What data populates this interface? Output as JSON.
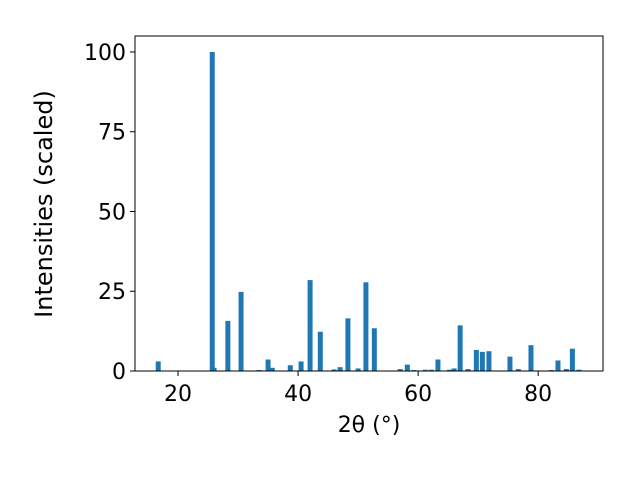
{
  "chart_data": {
    "type": "bar",
    "xlabel": "2θ (°)",
    "ylabel": "Intensities (scaled)",
    "color": "#1f77b4",
    "x": [
      16.7,
      25.7,
      26.0,
      28.3,
      30.5,
      33.5,
      35.0,
      35.7,
      38.7,
      40.5,
      42.0,
      43.7,
      46.0,
      47.0,
      48.3,
      50.0,
      51.3,
      52.7,
      57.0,
      58.2,
      59.3,
      61.2,
      62.2,
      63.3,
      65.2,
      66.0,
      67.0,
      68.3,
      69.7,
      70.7,
      71.8,
      75.3,
      76.7,
      78.8,
      82.2,
      83.3,
      84.7,
      85.7,
      86.8
    ],
    "values": [
      3,
      100,
      1,
      15.7,
      24.8,
      0.3,
      3.6,
      1,
      1.8,
      3,
      28.5,
      12.3,
      0.5,
      1.2,
      16.5,
      0.8,
      27.8,
      13.4,
      0.6,
      2,
      0.3,
      0.4,
      0.4,
      3.6,
      0.4,
      0.8,
      14.3,
      0.6,
      6.6,
      6,
      6.2,
      4.5,
      0.6,
      8.1,
      0.3,
      3.3,
      0.6,
      7,
      0.4
    ],
    "xlim": [
      12.83,
      90.8
    ],
    "ylim": [
      0,
      105
    ],
    "xticks": [
      20,
      40,
      60,
      80
    ],
    "yticks": [
      0,
      25,
      50,
      75,
      100
    ]
  }
}
